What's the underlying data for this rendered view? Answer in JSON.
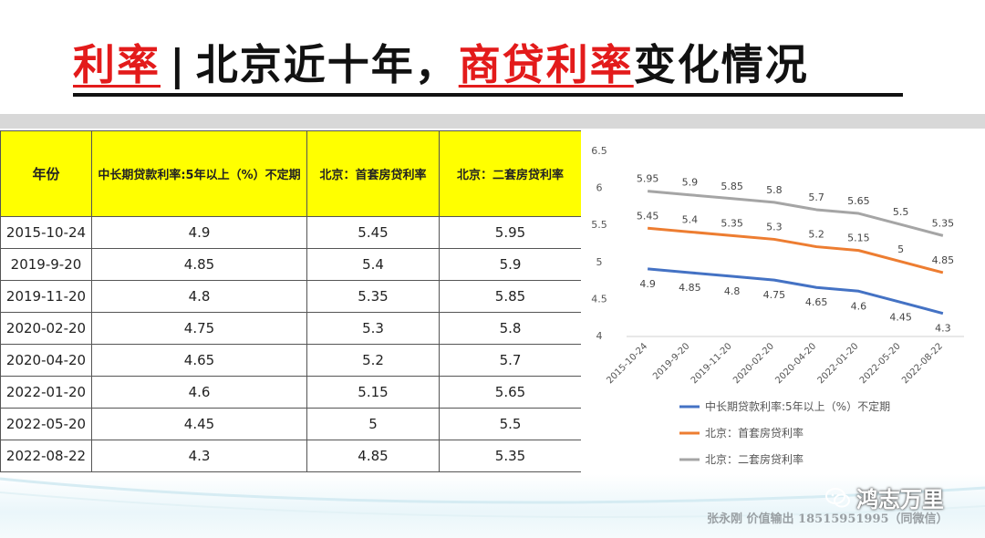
{
  "title": {
    "part1": "利率",
    "sep": "|",
    "part2": "北京近十年，",
    "part3": "商贷利率",
    "part4": "变化情况"
  },
  "table": {
    "headers": [
      "年份",
      "中长期贷款利率:5年以上（%）不定期",
      "北京：首套房贷利率",
      "北京：二套房贷利率"
    ],
    "rows": [
      [
        "2015-10-24",
        "4.9",
        "5.45",
        "5.95"
      ],
      [
        "2019-9-20",
        "4.85",
        "5.4",
        "5.9"
      ],
      [
        "2019-11-20",
        "4.8",
        "5.35",
        "5.85"
      ],
      [
        "2020-02-20",
        "4.75",
        "5.3",
        "5.8"
      ],
      [
        "2020-04-20",
        "4.65",
        "5.2",
        "5.7"
      ],
      [
        "2022-01-20",
        "4.6",
        "5.15",
        "5.65"
      ],
      [
        "2022-05-20",
        "4.45",
        "5",
        "5.5"
      ],
      [
        "2022-08-22",
        "4.3",
        "4.85",
        "5.35"
      ]
    ]
  },
  "chart_data": {
    "type": "line",
    "categories": [
      "2015-10-24",
      "2019-9-20",
      "2019-11-20",
      "2020-02-20",
      "2020-04-20",
      "2022-01-20",
      "2022-05-20",
      "2022-08-22"
    ],
    "series": [
      {
        "name": "中长期贷款利率:5年以上（%）不定期",
        "color": "#4472c4",
        "values": [
          4.9,
          4.85,
          4.8,
          4.75,
          4.65,
          4.6,
          4.45,
          4.3
        ]
      },
      {
        "name": "北京：首套房贷利率",
        "color": "#ed7d31",
        "values": [
          5.45,
          5.4,
          5.35,
          5.3,
          5.2,
          5.15,
          5.0,
          4.85
        ]
      },
      {
        "name": "北京：二套房贷利率",
        "color": "#a5a5a5",
        "values": [
          5.95,
          5.9,
          5.85,
          5.8,
          5.7,
          5.65,
          5.5,
          5.35
        ]
      }
    ],
    "ylim": [
      4,
      6.5
    ],
    "yticks": [
      "4",
      "4.5",
      "5",
      "5.5",
      "6",
      "6.5"
    ],
    "grid": false,
    "legend": "bottom"
  },
  "footer": {
    "brand": "鸿志万里",
    "contact": "张永刚  价值输出  18515951995（同微信）",
    "icon": "wechat-icon"
  }
}
